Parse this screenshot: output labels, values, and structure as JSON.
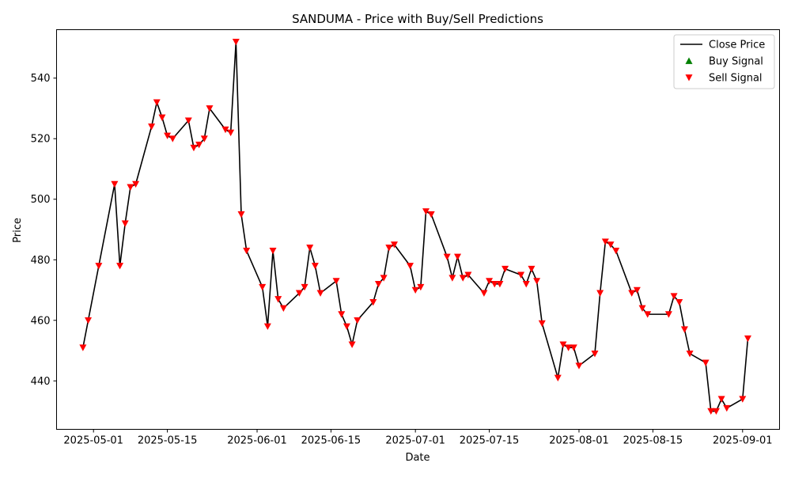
{
  "chart_data": {
    "type": "line",
    "title": "SANDUMA - Price with Buy/Sell Predictions",
    "xlabel": "Date",
    "ylabel": "Price",
    "xlim": [
      "2025-04-24",
      "2025-09-08"
    ],
    "ylim": [
      424,
      556
    ],
    "x_ticks": [
      "2025-05-01",
      "2025-05-15",
      "2025-06-01",
      "2025-06-15",
      "2025-07-01",
      "2025-07-15",
      "2025-08-01",
      "2025-08-15",
      "2025-09-01"
    ],
    "y_ticks": [
      440,
      460,
      480,
      500,
      520,
      540
    ],
    "grid": false,
    "legend_position": "top-right",
    "colors": {
      "close": "#000000",
      "buy": "#008000",
      "sell": "#ff0000"
    },
    "series": [
      {
        "name": "Close Price",
        "kind": "line",
        "x": [
          "2025-04-29",
          "2025-04-30",
          "2025-05-02",
          "2025-05-05",
          "2025-05-06",
          "2025-05-07",
          "2025-05-08",
          "2025-05-09",
          "2025-05-12",
          "2025-05-13",
          "2025-05-14",
          "2025-05-15",
          "2025-05-16",
          "2025-05-19",
          "2025-05-20",
          "2025-05-21",
          "2025-05-22",
          "2025-05-23",
          "2025-05-26",
          "2025-05-27",
          "2025-05-28",
          "2025-05-29",
          "2025-05-30",
          "2025-06-02",
          "2025-06-03",
          "2025-06-04",
          "2025-06-05",
          "2025-06-06",
          "2025-06-09",
          "2025-06-10",
          "2025-06-11",
          "2025-06-12",
          "2025-06-13",
          "2025-06-16",
          "2025-06-17",
          "2025-06-18",
          "2025-06-19",
          "2025-06-20",
          "2025-06-23",
          "2025-06-24",
          "2025-06-25",
          "2025-06-26",
          "2025-06-27",
          "2025-06-30",
          "2025-07-01",
          "2025-07-02",
          "2025-07-03",
          "2025-07-04",
          "2025-07-07",
          "2025-07-08",
          "2025-07-09",
          "2025-07-10",
          "2025-07-11",
          "2025-07-14",
          "2025-07-15",
          "2025-07-16",
          "2025-07-17",
          "2025-07-18",
          "2025-07-21",
          "2025-07-22",
          "2025-07-23",
          "2025-07-24",
          "2025-07-25",
          "2025-07-28",
          "2025-07-29",
          "2025-07-30",
          "2025-07-31",
          "2025-08-01",
          "2025-08-04",
          "2025-08-05",
          "2025-08-06",
          "2025-08-07",
          "2025-08-08",
          "2025-08-11",
          "2025-08-12",
          "2025-08-13",
          "2025-08-14",
          "2025-08-18",
          "2025-08-19",
          "2025-08-20",
          "2025-08-21",
          "2025-08-22",
          "2025-08-25",
          "2025-08-26",
          "2025-08-27",
          "2025-08-28",
          "2025-08-29",
          "2025-09-01",
          "2025-09-02"
        ],
        "y": [
          451,
          460,
          478,
          505,
          478,
          492,
          504,
          505,
          524,
          532,
          527,
          521,
          520,
          526,
          517,
          518,
          520,
          530,
          523,
          522,
          552,
          495,
          483,
          471,
          458,
          483,
          467,
          464,
          469,
          471,
          484,
          478,
          469,
          473,
          462,
          458,
          452,
          460,
          466,
          472,
          474,
          484,
          485,
          478,
          470,
          471,
          496,
          495,
          481,
          474,
          481,
          474,
          475,
          469,
          473,
          472,
          472,
          477,
          475,
          472,
          477,
          473,
          459,
          441,
          452,
          451,
          451,
          445,
          449,
          469,
          486,
          485,
          483,
          469,
          470,
          464,
          462,
          462,
          468,
          466,
          457,
          449,
          446,
          430,
          430,
          434,
          431,
          434,
          454
        ]
      },
      {
        "name": "Buy Signal",
        "kind": "marker",
        "marker": "triangle-up",
        "x": [],
        "y": []
      },
      {
        "name": "Sell Signal",
        "kind": "marker",
        "marker": "triangle-down",
        "x": [
          "2025-04-29",
          "2025-04-30",
          "2025-05-02",
          "2025-05-05",
          "2025-05-06",
          "2025-05-07",
          "2025-05-08",
          "2025-05-09",
          "2025-05-12",
          "2025-05-13",
          "2025-05-14",
          "2025-05-15",
          "2025-05-16",
          "2025-05-19",
          "2025-05-20",
          "2025-05-21",
          "2025-05-22",
          "2025-05-23",
          "2025-05-26",
          "2025-05-27",
          "2025-05-28",
          "2025-05-29",
          "2025-05-30",
          "2025-06-02",
          "2025-06-03",
          "2025-06-04",
          "2025-06-05",
          "2025-06-06",
          "2025-06-09",
          "2025-06-10",
          "2025-06-11",
          "2025-06-12",
          "2025-06-13",
          "2025-06-16",
          "2025-06-17",
          "2025-06-18",
          "2025-06-19",
          "2025-06-20",
          "2025-06-23",
          "2025-06-24",
          "2025-06-25",
          "2025-06-26",
          "2025-06-27",
          "2025-06-30",
          "2025-07-01",
          "2025-07-02",
          "2025-07-03",
          "2025-07-04",
          "2025-07-07",
          "2025-07-08",
          "2025-07-09",
          "2025-07-10",
          "2025-07-11",
          "2025-07-14",
          "2025-07-15",
          "2025-07-16",
          "2025-07-17",
          "2025-07-18",
          "2025-07-21",
          "2025-07-22",
          "2025-07-23",
          "2025-07-24",
          "2025-07-25",
          "2025-07-28",
          "2025-07-29",
          "2025-07-30",
          "2025-07-31",
          "2025-08-01",
          "2025-08-04",
          "2025-08-05",
          "2025-08-06",
          "2025-08-07",
          "2025-08-08",
          "2025-08-11",
          "2025-08-12",
          "2025-08-13",
          "2025-08-14",
          "2025-08-18",
          "2025-08-19",
          "2025-08-20",
          "2025-08-21",
          "2025-08-22",
          "2025-08-25",
          "2025-08-26",
          "2025-08-27",
          "2025-08-28",
          "2025-08-29",
          "2025-09-01",
          "2025-09-02"
        ],
        "y": [
          451,
          460,
          478,
          505,
          478,
          492,
          504,
          505,
          524,
          532,
          527,
          521,
          520,
          526,
          517,
          518,
          520,
          530,
          523,
          522,
          552,
          495,
          483,
          471,
          458,
          483,
          467,
          464,
          469,
          471,
          484,
          478,
          469,
          473,
          462,
          458,
          452,
          460,
          466,
          472,
          474,
          484,
          485,
          478,
          470,
          471,
          496,
          495,
          481,
          474,
          481,
          474,
          475,
          469,
          473,
          472,
          472,
          477,
          475,
          472,
          477,
          473,
          459,
          441,
          452,
          451,
          451,
          445,
          449,
          469,
          486,
          485,
          483,
          469,
          470,
          464,
          462,
          462,
          468,
          466,
          457,
          449,
          446,
          430,
          430,
          434,
          431,
          434,
          454
        ]
      }
    ]
  }
}
